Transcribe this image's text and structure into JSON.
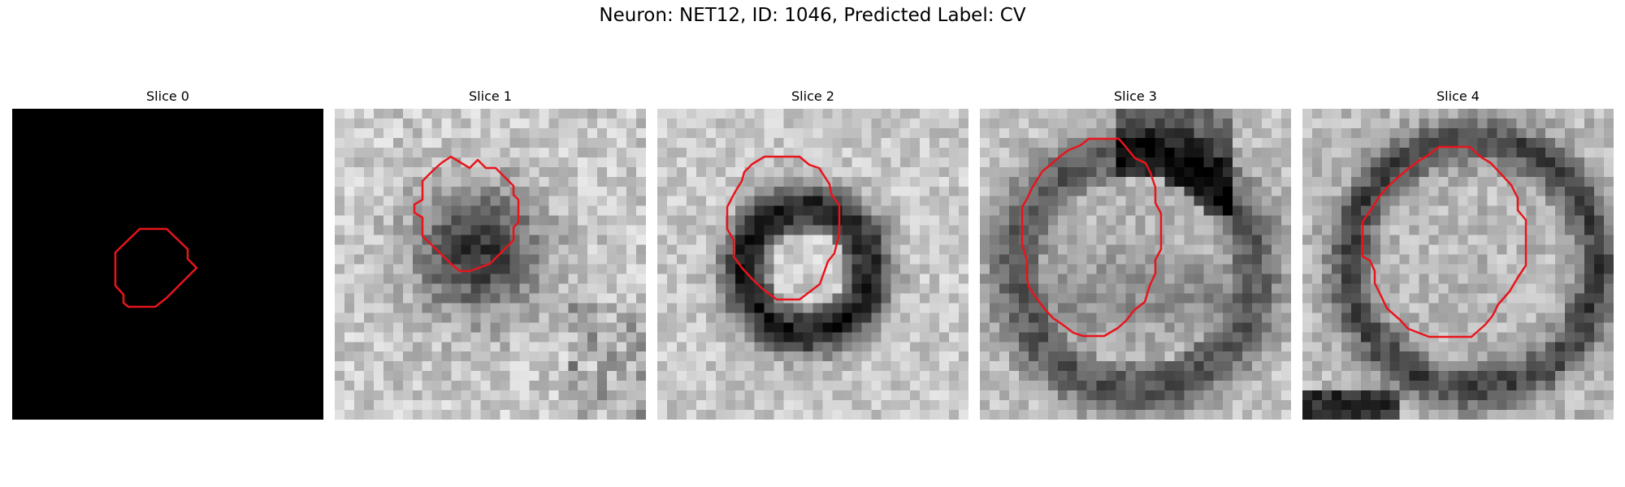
{
  "figure": {
    "title": "Neuron: NET12, ID: 1046, Predicted Label: CV",
    "outline_color": "#e8141c"
  },
  "panels": [
    {
      "title": "Slice 0",
      "pattern": "black"
    },
    {
      "title": "Slice 1",
      "pattern": "dark-blob"
    },
    {
      "title": "Slice 2",
      "pattern": "dark-ring-bright-center"
    },
    {
      "title": "Slice 3",
      "pattern": "large-soft-cell"
    },
    {
      "title": "Slice 4",
      "pattern": "large-cell-dark-rim"
    }
  ]
}
